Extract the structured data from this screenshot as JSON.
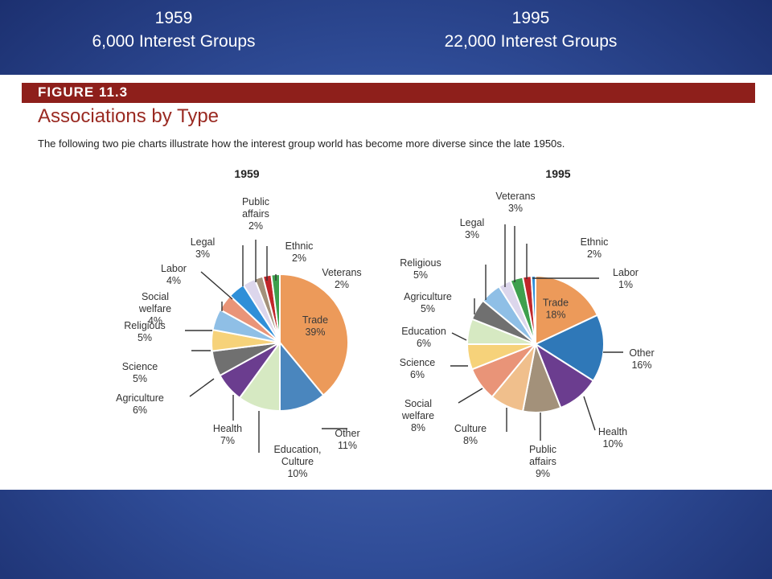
{
  "slide": {
    "left_header": {
      "year": "1959",
      "count": "6,000 Interest Groups"
    },
    "right_header": {
      "year": "1995",
      "count": "22,000 Interest Groups"
    }
  },
  "figure": {
    "number": "FIGURE 11.3",
    "title": "Associations by Type",
    "caption": "The following two pie charts illustrate how the interest group world has become more diverse since the late 1950s."
  },
  "chart_data": [
    {
      "type": "pie",
      "title": "1959",
      "slices": [
        {
          "label": "Trade",
          "value": 39,
          "color": "#ec9a5a",
          "inside": true
        },
        {
          "label": "Other",
          "value": 11,
          "color": "#4a86be"
        },
        {
          "label": "Education, Culture",
          "value": 10,
          "color": "#d6e9c2"
        },
        {
          "label": "Health",
          "value": 7,
          "color": "#6b3d8f"
        },
        {
          "label": "Agriculture",
          "value": 6,
          "color": "#707070"
        },
        {
          "label": "Science",
          "value": 5,
          "color": "#f6d27a"
        },
        {
          "label": "Religious",
          "value": 5,
          "color": "#8fbfe6"
        },
        {
          "label": "Social welfare",
          "value": 4,
          "color": "#e99478"
        },
        {
          "label": "Labor",
          "value": 4,
          "color": "#2f8fd8"
        },
        {
          "label": "Legal",
          "value": 3,
          "color": "#dcd6ec"
        },
        {
          "label": "Public affairs",
          "value": 2,
          "color": "#a3917a"
        },
        {
          "label": "Ethnic",
          "value": 2,
          "color": "#c0262a"
        },
        {
          "label": "Veterans",
          "value": 2,
          "color": "#3ea04e"
        }
      ]
    },
    {
      "type": "pie",
      "title": "1995",
      "slices": [
        {
          "label": "Trade",
          "value": 18,
          "color": "#ec9a5a",
          "inside": true
        },
        {
          "label": "Other",
          "value": 16,
          "color": "#2f78b8"
        },
        {
          "label": "Health",
          "value": 10,
          "color": "#6b3d8f"
        },
        {
          "label": "Public affairs",
          "value": 9,
          "color": "#a3917a"
        },
        {
          "label": "Culture",
          "value": 8,
          "color": "#f0bf8c"
        },
        {
          "label": "Social welfare",
          "value": 8,
          "color": "#e99478"
        },
        {
          "label": "Science",
          "value": 6,
          "color": "#f6d27a"
        },
        {
          "label": "Education",
          "value": 6,
          "color": "#d6e9c2"
        },
        {
          "label": "Agriculture",
          "value": 5,
          "color": "#707070"
        },
        {
          "label": "Religious",
          "value": 5,
          "color": "#8fbfe6"
        },
        {
          "label": "Legal",
          "value": 3,
          "color": "#dcd6ec"
        },
        {
          "label": "Veterans",
          "value": 3,
          "color": "#3ea04e"
        },
        {
          "label": "Ethnic",
          "value": 2,
          "color": "#c0262a"
        },
        {
          "label": "Labor",
          "value": 1,
          "color": "#2f8fd8"
        }
      ]
    }
  ]
}
